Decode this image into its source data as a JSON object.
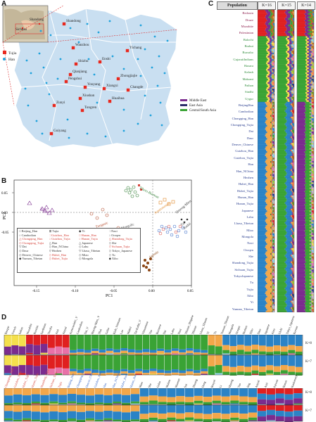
{
  "panels": {
    "a": "A",
    "b": "B",
    "c": "C",
    "d": "D"
  },
  "colors": {
    "tujia": "#e8281e",
    "han": "#1fa2dc",
    "map_fill": "#c9dff1",
    "africa_like": "#e02020",
    "europe_like": "#3a6fc4",
    "east_asia_orange": "#f2a74a",
    "east_asia_blue": "#2b83c6",
    "green": "#3aa335",
    "purple": "#7b2c8e"
  },
  "map": {
    "inset_cities": [
      "Sichuan",
      "Shandong"
    ],
    "cities": [
      {
        "name": "Shandong",
        "type": "tujia",
        "x": 91,
        "y": 34
      },
      {
        "name": "Yichang",
        "type": "tujia",
        "x": 181,
        "y": 72
      },
      {
        "name": "Wanzhou",
        "type": "tujia",
        "x": 104,
        "y": 68
      },
      {
        "name": "Shizhu",
        "type": "tujia",
        "x": 108,
        "y": 91
      },
      {
        "name": "Enshi",
        "type": "tujia",
        "x": 142,
        "y": 88
      },
      {
        "name": "Qianjiang",
        "type": "tujia",
        "x": 100,
        "y": 106
      },
      {
        "name": "Pengshui",
        "type": "tujia",
        "x": 94,
        "y": 116
      },
      {
        "name": "Zhongjiajie",
        "type": "tujia",
        "x": 168,
        "y": 112
      },
      {
        "name": "Youyang",
        "type": "tujia",
        "x": 121,
        "y": 124
      },
      {
        "name": "Xiangxi",
        "type": "tujia",
        "x": 148,
        "y": 126
      },
      {
        "name": "Changde",
        "type": "tujia",
        "x": 182,
        "y": 128
      },
      {
        "name": "Xiushan",
        "type": "tujia",
        "x": 114,
        "y": 140
      },
      {
        "name": "Huaihua",
        "type": "tujia",
        "x": 156,
        "y": 144
      },
      {
        "name": "Zunyi",
        "type": "tujia",
        "x": 77,
        "y": 150
      },
      {
        "name": "Tongren",
        "type": "tujia",
        "x": 117,
        "y": 157
      },
      {
        "name": "Guiyang",
        "type": "tujia",
        "x": 73,
        "y": 190
      }
    ],
    "legend": [
      {
        "label": "Tujia",
        "type": "tujia"
      },
      {
        "label": "Han",
        "type": "han"
      }
    ]
  },
  "pca": {
    "x_label": "PC1",
    "y_label": "PC2",
    "x_ticks": [
      -0.15,
      -0.1,
      -0.05,
      0.0,
      0.05
    ],
    "y_ticks": [
      0.05,
      0.0,
      -0.05
    ],
    "group_labels": [
      "Tibeto-Burman",
      "Turkic",
      "Tungusic",
      "Mongolic",
      "Austronesian",
      "Hmong-Mien",
      "Tai-Kadai",
      "Japonic"
    ],
    "legend_entries": [
      {
        "label": "Beijing_Han",
        "color": "#333333",
        "marker": "□"
      },
      {
        "label": "Cambodian",
        "color": "#333333",
        "marker": "○"
      },
      {
        "label": "Chongqing_Han",
        "color": "#d6453c",
        "marker": "△"
      },
      {
        "label": "Chongqing_Tujia",
        "color": "#d6453c",
        "marker": "◇"
      },
      {
        "label": "Dai",
        "color": "#333333",
        "marker": "▽"
      },
      {
        "label": "Daur",
        "color": "#333333",
        "marker": "◇"
      },
      {
        "label": "Denver_Chinese",
        "color": "#333333",
        "marker": "◇"
      },
      {
        "label": "Yunnan_Tibetan",
        "color": "#333333",
        "marker": "◆"
      },
      {
        "label": "Tujia",
        "color": "#333333",
        "marker": "⊞"
      },
      {
        "label": "Guizhou_Han",
        "color": "#d6453c",
        "marker": "□"
      },
      {
        "label": "Guizhou_Tujia",
        "color": "#d6453c",
        "marker": "○"
      },
      {
        "label": "Han",
        "color": "#333333",
        "marker": "△"
      },
      {
        "label": "Han_NChina",
        "color": "#333333",
        "marker": "◇"
      },
      {
        "label": "Hezhen",
        "color": "#333333",
        "marker": "▽"
      },
      {
        "label": "Hubei_Han",
        "color": "#d6453c",
        "marker": "◇"
      },
      {
        "label": "Hubei_Tujia",
        "color": "#d6453c",
        "marker": "◇"
      },
      {
        "label": "Yi",
        "color": "#333333",
        "marker": "◆"
      },
      {
        "label": "Hunan_Han",
        "color": "#d6453c",
        "marker": "□"
      },
      {
        "label": "Hunan_Tujia",
        "color": "#d6453c",
        "marker": "○"
      },
      {
        "label": "Japanese",
        "color": "#333333",
        "marker": "△"
      },
      {
        "label": "Lahu",
        "color": "#333333",
        "marker": "◇"
      },
      {
        "label": "Lhasa_Tibetan",
        "color": "#333333",
        "marker": "▽"
      },
      {
        "label": "Miao",
        "color": "#333333",
        "marker": "◇"
      },
      {
        "label": "Mongola",
        "color": "#333333",
        "marker": "◇"
      },
      {
        "label": "Naxi",
        "color": "#333333",
        "marker": "□"
      },
      {
        "label": "Oroqen",
        "color": "#333333",
        "marker": "○"
      },
      {
        "label": "Shandong_Tujia",
        "color": "#d6453c",
        "marker": "△"
      },
      {
        "label": "She",
        "color": "#333333",
        "marker": "◇"
      },
      {
        "label": "Sichuan_Tujia",
        "color": "#d6453c",
        "marker": "▽"
      },
      {
        "label": "Tokyo_Japanese",
        "color": "#333333",
        "marker": "◇"
      },
      {
        "label": "Tu",
        "color": "#333333",
        "marker": "◇"
      },
      {
        "label": "Xibo",
        "color": "#333333",
        "marker": "◆"
      }
    ]
  },
  "admixture_c": {
    "header": "Population",
    "k_labels": [
      "K=16",
      "K=15",
      "K=14"
    ],
    "region_legend": [
      {
        "label": "Middle East",
        "color": "#7b2c8e"
      },
      {
        "label": "East Asia",
        "color": "#2d2d6b"
      },
      {
        "label": "Central/South Asia",
        "color": "#3aa335"
      }
    ],
    "populations": [
      {
        "name": "Bedouin",
        "color": "#8b1a4a"
      },
      {
        "name": "Druze",
        "color": "#8b1a4a"
      },
      {
        "name": "Mozabite",
        "color": "#8b1a4a"
      },
      {
        "name": "Palestinian",
        "color": "#8b1a4a"
      },
      {
        "name": "Balochi",
        "color": "#2e8b3a"
      },
      {
        "name": "Brahui",
        "color": "#2e8b3a"
      },
      {
        "name": "Burusho",
        "color": "#2e8b3a"
      },
      {
        "name": "GujaratiIndians",
        "color": "#2e8b3a"
      },
      {
        "name": "Hazara",
        "color": "#2e8b3a"
      },
      {
        "name": "Kalash",
        "color": "#2e8b3a"
      },
      {
        "name": "Makrani",
        "color": "#2e8b3a"
      },
      {
        "name": "Pathan",
        "color": "#2e8b3a"
      },
      {
        "name": "Sindhi",
        "color": "#2e8b3a"
      },
      {
        "name": "Uygur",
        "color": "#2e8b3a"
      },
      {
        "name": "BeijingHan",
        "color": "#2b3f8f"
      },
      {
        "name": "Cambodian",
        "color": "#2b3f8f"
      },
      {
        "name": "Chongqing_Han",
        "color": "#2b3f8f"
      },
      {
        "name": "Chongqing_Tujia",
        "color": "#2b3f8f"
      },
      {
        "name": "Dai",
        "color": "#2b3f8f"
      },
      {
        "name": "Daur",
        "color": "#2b3f8f"
      },
      {
        "name": "Denver_Chinese",
        "color": "#2b3f8f"
      },
      {
        "name": "Guizhou_Han",
        "color": "#2b3f8f"
      },
      {
        "name": "Guizhou_Tujia",
        "color": "#2b3f8f"
      },
      {
        "name": "Han",
        "color": "#2b3f8f"
      },
      {
        "name": "Han_NChina",
        "color": "#2b3f8f"
      },
      {
        "name": "Hezhen",
        "color": "#2b3f8f"
      },
      {
        "name": "Hubei_Han",
        "color": "#2b3f8f"
      },
      {
        "name": "Hubei_Tujia",
        "color": "#2b3f8f"
      },
      {
        "name": "Hunan_Han",
        "color": "#2b3f8f"
      },
      {
        "name": "Hunan_Tujia",
        "color": "#2b3f8f"
      },
      {
        "name": "Japanese",
        "color": "#2b3f8f"
      },
      {
        "name": "Lahu",
        "color": "#2b3f8f"
      },
      {
        "name": "Lhasa_Tibetan",
        "color": "#2b3f8f"
      },
      {
        "name": "Miao",
        "color": "#2b3f8f"
      },
      {
        "name": "Mongola",
        "color": "#2b3f8f"
      },
      {
        "name": "Naxi",
        "color": "#2b3f8f"
      },
      {
        "name": "Oroqen",
        "color": "#2b3f8f"
      },
      {
        "name": "She",
        "color": "#2b3f8f"
      },
      {
        "name": "Shandong_Tujia",
        "color": "#2b3f8f"
      },
      {
        "name": "Sichuan_Tujia",
        "color": "#2b3f8f"
      },
      {
        "name": "TokyoJapanese",
        "color": "#2b3f8f"
      },
      {
        "name": "Tu",
        "color": "#2b3f8f"
      },
      {
        "name": "Tujia",
        "color": "#2b3f8f"
      },
      {
        "name": "Xibo",
        "color": "#2b3f8f"
      },
      {
        "name": "Yi",
        "color": "#2b3f8f"
      },
      {
        "name": "Yunnan_Tibetan",
        "color": "#2b3f8f"
      }
    ]
  },
  "admixture_d": {
    "k_labels_top": [
      "K=8",
      "K=7"
    ],
    "k_labels_bottom": [
      "K=8",
      "K=7"
    ],
    "top_populations": [
      {
        "name": "Basque",
        "color": "#222"
      },
      {
        "name": "French",
        "color": "#222"
      },
      {
        "name": "Italian",
        "color": "#222"
      },
      {
        "name": "Mozabite",
        "color": "#222"
      },
      {
        "name": "Russian",
        "color": "#222"
      },
      {
        "name": "Sardinian",
        "color": "#222"
      },
      {
        "name": "Yoruba",
        "color": "#222"
      },
      {
        "name": "Ami",
        "color": "#222"
      },
      {
        "name": "Atayal",
        "color": "#222"
      },
      {
        "name": "Austroasiatic_V",
        "color": "#222"
      },
      {
        "name": "Cambodian",
        "color": "#222"
      },
      {
        "name": "Dai_V",
        "color": "#222"
      },
      {
        "name": "Hmong-Mien_V",
        "color": "#222"
      },
      {
        "name": "Thai",
        "color": "#222"
      },
      {
        "name": "Gelao",
        "color": "#222"
      },
      {
        "name": "Kinh_Vietnam",
        "color": "#222"
      },
      {
        "name": "Lao",
        "color": "#222"
      },
      {
        "name": "Mlabri",
        "color": "#222"
      },
      {
        "name": "Tai-Kadai_V",
        "color": "#222"
      },
      {
        "name": "Vietnamese",
        "color": "#222"
      },
      {
        "name": "Yao",
        "color": "#222"
      },
      {
        "name": "Burmese",
        "color": "#222"
      },
      {
        "name": "Dai",
        "color": "#222"
      },
      {
        "name": "Lahu",
        "color": "#222"
      },
      {
        "name": "Naxi",
        "color": "#222"
      },
      {
        "name": "Tibetan_Shigatse",
        "color": "#222"
      },
      {
        "name": "Tibetan",
        "color": "#222"
      },
      {
        "name": "Lhasa_Tibetan",
        "color": "#222"
      },
      {
        "name": "Yi",
        "color": "#222"
      },
      {
        "name": "Tu",
        "color": "#222"
      },
      {
        "name": "Yunnan_Tibetan",
        "color": "#222"
      },
      {
        "name": "Mongola",
        "color": "#222"
      },
      {
        "name": "Oroqen",
        "color": "#222"
      },
      {
        "name": "Hezhen",
        "color": "#222"
      },
      {
        "name": "Xibo",
        "color": "#222"
      },
      {
        "name": "Daur",
        "color": "#222"
      },
      {
        "name": "Japanese",
        "color": "#222"
      },
      {
        "name": "Ainu",
        "color": "#222"
      },
      {
        "name": "Ulchi",
        "color": "#222"
      },
      {
        "name": "Tokyo_Japanese",
        "color": "#222"
      },
      {
        "name": "Korean",
        "color": "#222"
      }
    ],
    "bottom_populations": [
      {
        "name": "Chongqing_Tujia",
        "color": "#d6453c"
      },
      {
        "name": "Guizhou_Tujia",
        "color": "#d6453c"
      },
      {
        "name": "Hubei_Tujia",
        "color": "#d6453c"
      },
      {
        "name": "Hunan_Tujia",
        "color": "#d6453c"
      },
      {
        "name": "Shandong_Tujia",
        "color": "#d6453c"
      },
      {
        "name": "Sichuan_Tujia",
        "color": "#d6453c"
      },
      {
        "name": "Tujia",
        "color": "#d6453c"
      },
      {
        "name": "Beijing_Han",
        "color": "#2b5fc4"
      },
      {
        "name": "Chongqing_Han",
        "color": "#2b5fc4"
      },
      {
        "name": "Denver_Chinese",
        "color": "#2b5fc4"
      },
      {
        "name": "Guizhou_Han",
        "color": "#2b5fc4"
      },
      {
        "name": "Han",
        "color": "#2b5fc4"
      },
      {
        "name": "Han_NChina",
        "color": "#2b5fc4"
      },
      {
        "name": "Hubei_Han",
        "color": "#2b5fc4"
      },
      {
        "name": "Hunan_Han",
        "color": "#2b5fc4"
      },
      {
        "name": "Miao",
        "color": "#222"
      },
      {
        "name": "She",
        "color": "#222"
      },
      {
        "name": "Gelao",
        "color": "#222"
      },
      {
        "name": "Mulam",
        "color": "#222"
      },
      {
        "name": "Maonan",
        "color": "#222"
      },
      {
        "name": "Sui",
        "color": "#222"
      },
      {
        "name": "Zhuang",
        "color": "#222"
      },
      {
        "name": "Dong",
        "color": "#222"
      },
      {
        "name": "Bouyei",
        "color": "#222"
      },
      {
        "name": "Li",
        "color": "#222"
      },
      {
        "name": "Hmong",
        "color": "#222"
      },
      {
        "name": "Yao",
        "color": "#222"
      },
      {
        "name": "Jing",
        "color": "#222"
      },
      {
        "name": "Atayal",
        "color": "#222"
      },
      {
        "name": "Ami",
        "color": "#222"
      },
      {
        "name": "Paiwan",
        "color": "#222"
      },
      {
        "name": "Bunun",
        "color": "#222"
      },
      {
        "name": "Kankanaey",
        "color": "#222"
      }
    ]
  }
}
